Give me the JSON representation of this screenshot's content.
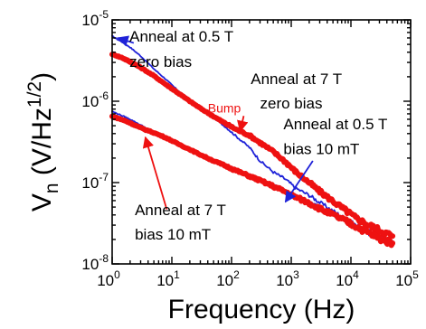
{
  "chart_data": {
    "type": "line",
    "xscale": "log",
    "yscale": "log",
    "xlim": [
      1,
      100000
    ],
    "ylim": [
      1e-08,
      1e-05
    ],
    "grid": false,
    "legend": "none",
    "xlabel": "Frequency (Hz)",
    "ylabel": {
      "main": "V",
      "sub": "n",
      "rest": " (V/Hz",
      "sup": "1/2",
      "close": ")"
    },
    "xticks": [
      {
        "value": 1,
        "mantissa": "10",
        "exp": "0"
      },
      {
        "value": 10,
        "mantissa": "10",
        "exp": "1"
      },
      {
        "value": 100,
        "mantissa": "10",
        "exp": "2"
      },
      {
        "value": 1000,
        "mantissa": "10",
        "exp": "3"
      },
      {
        "value": 10000,
        "mantissa": "10",
        "exp": "4"
      },
      {
        "value": 100000,
        "mantissa": "10",
        "exp": "5"
      }
    ],
    "yticks": [
      {
        "value": 1e-08,
        "mantissa": "10",
        "exp": "-8"
      },
      {
        "value": 1e-07,
        "mantissa": "10",
        "exp": "-7"
      },
      {
        "value": 1e-06,
        "mantissa": "10",
        "exp": "-6"
      },
      {
        "value": 1e-05,
        "mantissa": "10",
        "exp": "-5"
      }
    ],
    "series": [
      {
        "id": "s_anneal05_zero",
        "color": "#1f22d8",
        "width": "thin",
        "x": [
          1,
          1.5,
          2,
          3,
          5,
          8,
          12,
          20,
          30,
          50,
          80,
          120,
          200,
          300,
          500,
          800,
          1200,
          2000,
          3000,
          5000,
          8000,
          12000,
          20000,
          30000,
          50000
        ],
        "y": [
          6.3e-06,
          5.3e-06,
          4.6e-06,
          3.6e-06,
          2.5e-06,
          1.85e-06,
          1.4e-06,
          1.05e-06,
          8.5e-07,
          6.3e-07,
          4.8e-07,
          3.7e-07,
          2.7e-07,
          1.85e-07,
          1.35e-07,
          1.1e-07,
          8.5e-08,
          7e-08,
          5.7e-08,
          4.5e-08,
          3.6e-08,
          3e-08,
          2.5e-08,
          2.1e-08,
          1.9e-08
        ]
      },
      {
        "id": "s_anneal7_zero",
        "color": "#ee1111",
        "width": "thick",
        "x": [
          1,
          1.5,
          2,
          3,
          5,
          8,
          12,
          20,
          30,
          50,
          80,
          120,
          200,
          300,
          500,
          800,
          1200,
          2000,
          3000,
          5000,
          8000,
          12000,
          20000,
          30000,
          50000
        ],
        "y": [
          3.8e-06,
          3.4e-06,
          3.05e-06,
          2.6e-06,
          2.05e-06,
          1.6e-06,
          1.3e-06,
          1e-06,
          8.2e-07,
          6.5e-07,
          5.3e-07,
          4.5e-07,
          3.8e-07,
          3.1e-07,
          2.4e-07,
          1.8e-07,
          1.35e-07,
          1e-07,
          7.8e-08,
          5.9e-08,
          4.6e-08,
          3.7e-08,
          3e-08,
          2.6e-08,
          2.2e-08
        ]
      },
      {
        "id": "s_anneal05_bias",
        "color": "#1f22d8",
        "width": "thin",
        "x": [
          1,
          1.5,
          2,
          3,
          5,
          8,
          12,
          20,
          30,
          50,
          80,
          120,
          200,
          300,
          500,
          800,
          1200,
          2000,
          3000,
          5000,
          8000,
          12000,
          20000,
          30000,
          50000
        ],
        "y": [
          7.5e-07,
          6.6e-07,
          6e-07,
          5.1e-07,
          4.2e-07,
          3.6e-07,
          3.1e-07,
          2.6e-07,
          2.25e-07,
          1.9e-07,
          1.65e-07,
          1.45e-07,
          1.25e-07,
          1.1e-07,
          9.3e-08,
          8e-08,
          6.8e-08,
          5.7e-08,
          4.9e-08,
          4.1e-08,
          3.4e-08,
          2.9e-08,
          2.4e-08,
          2.05e-08,
          1.75e-08
        ]
      },
      {
        "id": "s_anneal7_bias",
        "color": "#ee1111",
        "width": "thick",
        "x": [
          1,
          1.5,
          2,
          3,
          5,
          8,
          12,
          20,
          30,
          50,
          80,
          120,
          200,
          300,
          500,
          800,
          1200,
          2000,
          3000,
          5000,
          8000,
          12000,
          20000,
          30000,
          50000
        ],
        "y": [
          6.5e-07,
          5.9e-07,
          5.4e-07,
          4.7e-07,
          4.1e-07,
          3.55e-07,
          3.05e-07,
          2.55e-07,
          2.2e-07,
          1.85e-07,
          1.6e-07,
          1.4e-07,
          1.2e-07,
          1.06e-07,
          9e-08,
          7.7e-08,
          6.6e-08,
          5.6e-08,
          4.8e-08,
          4e-08,
          3.4e-08,
          2.9e-08,
          2.4e-08,
          2.05e-08,
          1.8e-08
        ]
      }
    ],
    "annotations": [
      {
        "id": "lbl_a05z_1",
        "text": "Anneal at 0.5 T",
        "color": "#000000",
        "x": 1.95,
        "y": 5.4e-06,
        "anchor": "start",
        "size": "normal",
        "arrow": {
          "color": "#1f22d8",
          "from": [
            2.3,
            5.2e-06
          ],
          "to": [
            1.25,
            6e-06
          ]
        }
      },
      {
        "id": "lbl_a05z_2",
        "text": "zero bias",
        "color": "#000000",
        "x": 1.95,
        "y": 2.65e-06,
        "anchor": "start",
        "size": "normal"
      },
      {
        "id": "lbl_a7z_1",
        "text": "Anneal at 7 T",
        "color": "#000000",
        "x": 210,
        "y": 1.62e-06,
        "anchor": "start",
        "size": "normal"
      },
      {
        "id": "lbl_a7z_2",
        "text": "zero bias",
        "color": "#000000",
        "x": 300,
        "y": 8.2e-07,
        "anchor": "start",
        "size": "normal"
      },
      {
        "id": "lbl_bump",
        "text": "Bump",
        "color": "#ee1111",
        "x": 40,
        "y": 7.3e-07,
        "anchor": "start",
        "size": "small",
        "arrow": {
          "color": "#ee1111",
          "from": [
            160,
            6.6e-07
          ],
          "to": [
            140,
            4.3e-07
          ]
        }
      },
      {
        "id": "lbl_a05b_1",
        "text": "Anneal at 0.5 T",
        "color": "#000000",
        "x": 740,
        "y": 4.5e-07,
        "anchor": "start",
        "size": "normal"
      },
      {
        "id": "lbl_a05b_2",
        "text": "bias 10 mT",
        "color": "#000000",
        "x": 740,
        "y": 2.25e-07,
        "anchor": "start",
        "size": "normal",
        "arrow": {
          "color": "#1f22d8",
          "from": [
            2300,
            1.85e-07
          ],
          "to": [
            800,
            5.8e-08
          ]
        }
      },
      {
        "id": "lbl_a7b_1",
        "text": "Anneal at 7 T",
        "color": "#000000",
        "x": 2.4,
        "y": 4e-08,
        "anchor": "start",
        "size": "normal",
        "arrow": {
          "color": "#ee1111",
          "from": [
            8.2,
            4.7e-08
          ],
          "to": [
            3.6,
            3.6e-07
          ]
        }
      },
      {
        "id": "lbl_a7b_2",
        "text": "bias 10 mT",
        "color": "#000000",
        "x": 2.4,
        "y": 2e-08,
        "anchor": "start",
        "size": "normal"
      }
    ]
  }
}
